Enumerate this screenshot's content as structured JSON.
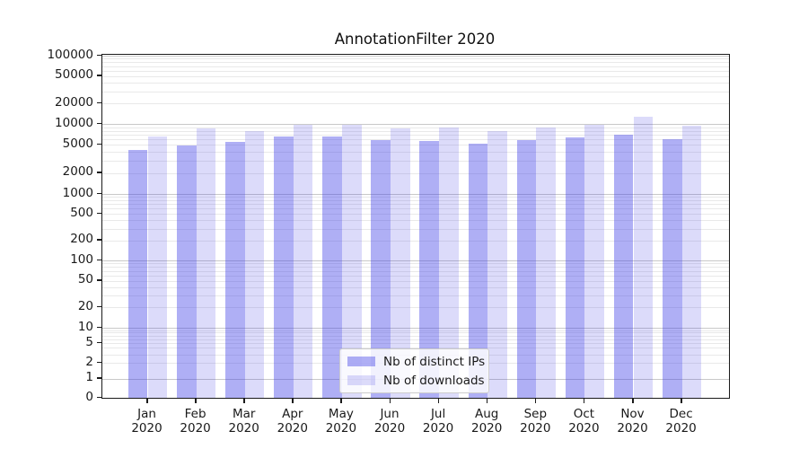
{
  "title": "AnnotationFilter 2020",
  "chart_data": {
    "type": "bar",
    "title": "AnnotationFilter 2020",
    "xlabel": "",
    "ylabel": "",
    "yscale": "symlog",
    "ylim": [
      0,
      100000
    ],
    "grid": "both",
    "legend_position": "lower center",
    "categories": [
      "Jan",
      "Feb",
      "Mar",
      "Apr",
      "May",
      "Jun",
      "Jul",
      "Aug",
      "Sep",
      "Oct",
      "Nov",
      "Dec"
    ],
    "category_year": "2020",
    "yticks": [
      0,
      1,
      2,
      5,
      10,
      20,
      50,
      100,
      200,
      500,
      1000,
      2000,
      5000,
      10000,
      20000,
      50000,
      100000
    ],
    "series": [
      {
        "name": "Nb of distinct IPs",
        "color": "rgba(64,64,232,0.42)",
        "solid_color": "#a9a9f2",
        "values": [
          4300,
          4900,
          5600,
          6600,
          6600,
          5800,
          5700,
          5200,
          5800,
          6500,
          7100,
          6100
        ]
      },
      {
        "name": "Nb of downloads",
        "color": "rgba(60,55,228,0.18)",
        "solid_color": "#dcdaf8",
        "values": [
          6700,
          8700,
          7800,
          9600,
          9800,
          8600,
          9000,
          7800,
          9000,
          9600,
          12900,
          9500
        ]
      }
    ]
  },
  "colors": {
    "major_grid": "#c9c9c9",
    "minor_grid": "#e9e9e9",
    "spine": "#1a1a1a"
  }
}
